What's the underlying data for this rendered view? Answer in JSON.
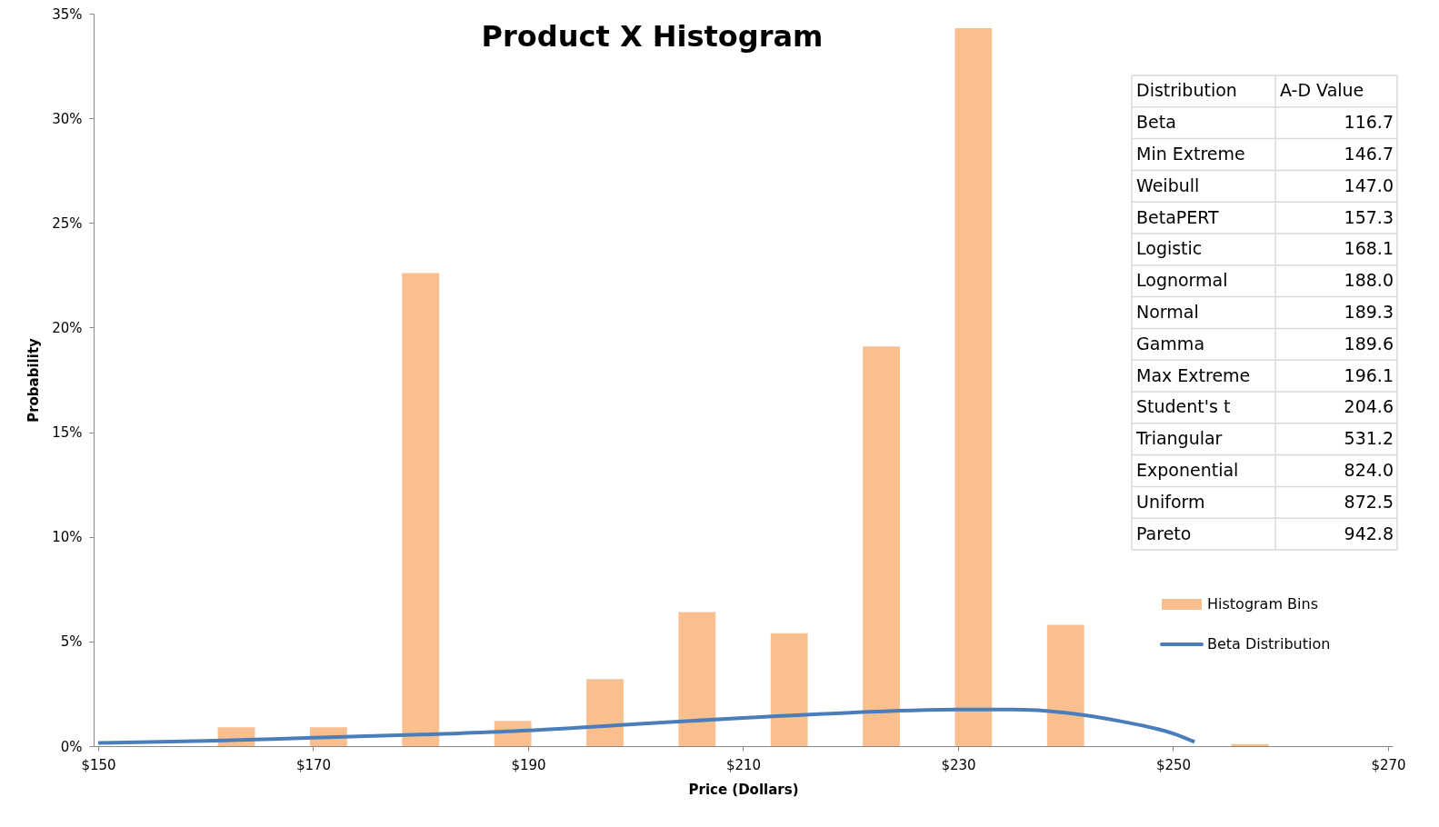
{
  "chart_data": {
    "type": "histogram",
    "title": "Product X Histogram",
    "xlabel": "Price (Dollars)",
    "ylabel": "Probability",
    "bins": [
      150,
      158.57,
      167.14,
      175.71,
      184.29,
      192.86,
      201.43,
      210,
      218.57,
      227.14,
      235.71,
      244.29,
      252.86,
      261.43,
      270
    ],
    "series": [
      {
        "name": "Histogram Bins",
        "color": "#f9bf8f",
        "values": [
          0,
          0.9,
          0.9,
          22.6,
          1.2,
          3.2,
          6.4,
          5.4,
          19.1,
          34.3,
          5.8,
          0,
          0.1,
          0
        ]
      },
      {
        "name": "Beta Distribution",
        "type": "line",
        "color": "#4a7ebb",
        "x": [
          150,
          160,
          170,
          180,
          190,
          200,
          210,
          220,
          230,
          235,
          240,
          245,
          250,
          252
        ],
        "values": [
          0.15,
          0.25,
          0.4,
          0.55,
          0.75,
          1.05,
          1.35,
          1.6,
          1.75,
          1.75,
          1.6,
          1.2,
          0.6,
          0.2
        ]
      }
    ],
    "xlim": [
      150,
      270
    ],
    "xticks": [
      {
        "value": 150,
        "label": "$150"
      },
      {
        "value": 170,
        "label": "$170"
      },
      {
        "value": 190,
        "label": "$190"
      },
      {
        "value": 210,
        "label": "$210"
      },
      {
        "value": 230,
        "label": "$230"
      },
      {
        "value": 250,
        "label": "$250"
      },
      {
        "value": 270,
        "label": "$270"
      }
    ],
    "ylim": [
      0,
      35
    ],
    "yticks": [
      {
        "value": 0,
        "label": "0%"
      },
      {
        "value": 5,
        "label": "5%"
      },
      {
        "value": 10,
        "label": "10%"
      },
      {
        "value": 15,
        "label": "15%"
      },
      {
        "value": 20,
        "label": "20%"
      },
      {
        "value": 25,
        "label": "25%"
      },
      {
        "value": 30,
        "label": "30%"
      },
      {
        "value": 35,
        "label": "35%"
      }
    ],
    "grid": false,
    "legend": "right",
    "annotations": [
      "Distribution",
      "A-D Value",
      "Beta",
      "116.7",
      "Min Extreme",
      "146.7",
      "Weibull",
      "147.0",
      "BetaPERT",
      "157.3",
      "Logistic",
      "168.1",
      "Lognormal",
      "188.0",
      "Normal",
      "189.3",
      "Gamma",
      "189.6",
      "Max Extreme",
      "196.1",
      "Student's t",
      "204.6",
      "Triangular",
      "531.2",
      "Exponential",
      "824.0",
      "Uniform",
      "872.5",
      "Pareto",
      "942.8"
    ]
  }
}
